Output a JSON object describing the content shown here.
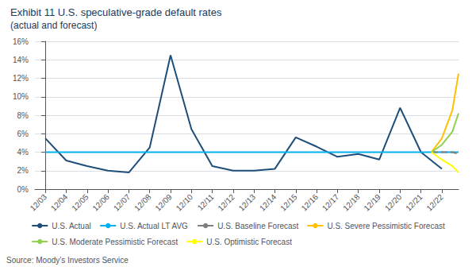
{
  "chart_data": {
    "type": "line",
    "title": "Exhibit 11 U.S. speculative-grade default rates",
    "subtitle": "(actual and forecast)",
    "annotations": [
      "Source: Moody’s Investors Service"
    ],
    "xlim": [
      -0.5,
      19.8
    ],
    "xticks": [
      {
        "value": 0,
        "label": "12/03"
      },
      {
        "value": 1,
        "label": "12/04"
      },
      {
        "value": 2,
        "label": "12/05"
      },
      {
        "value": 3,
        "label": "12/06"
      },
      {
        "value": 4,
        "label": "12/07"
      },
      {
        "value": 5,
        "label": "12/08"
      },
      {
        "value": 6,
        "label": "12/09"
      },
      {
        "value": 7,
        "label": "12/10"
      },
      {
        "value": 8,
        "label": "12/11"
      },
      {
        "value": 9,
        "label": "12/12"
      },
      {
        "value": 10,
        "label": "12/13"
      },
      {
        "value": 11,
        "label": "12/14"
      },
      {
        "value": 12,
        "label": "12/15"
      },
      {
        "value": 13,
        "label": "12/16"
      },
      {
        "value": 14,
        "label": "12/17"
      },
      {
        "value": 15,
        "label": "12/18"
      },
      {
        "value": 16,
        "label": "12/19"
      },
      {
        "value": 17,
        "label": "12/20"
      },
      {
        "value": 18,
        "label": "12/21"
      },
      {
        "value": 19,
        "label": "12/22"
      }
    ],
    "ylim": [
      0,
      0.16
    ],
    "yticks": [
      {
        "value": 0,
        "label": "0%"
      },
      {
        "value": 0.02,
        "label": "2%"
      },
      {
        "value": 0.04,
        "label": "4%"
      },
      {
        "value": 0.06,
        "label": "6%"
      },
      {
        "value": 0.08,
        "label": "8%"
      },
      {
        "value": 0.1,
        "label": "10%"
      },
      {
        "value": 0.12,
        "label": "12%"
      },
      {
        "value": 0.14,
        "label": "14%"
      },
      {
        "value": 0.16,
        "label": "16%"
      }
    ],
    "grid": true,
    "legend": "bottom",
    "series": [
      {
        "name": "U.S. Actual",
        "color": "#1f4e79",
        "line_style": "solid",
        "x": [
          0,
          1,
          2,
          3,
          4,
          5,
          6,
          7,
          8,
          9,
          10,
          11,
          12,
          13,
          14,
          15,
          16,
          17,
          18,
          19
        ],
        "values": [
          0.055,
          0.031,
          0.025,
          0.02,
          0.018,
          0.045,
          0.145,
          0.065,
          0.025,
          0.02,
          0.02,
          0.022,
          0.056,
          0.046,
          0.035,
          0.038,
          0.032,
          0.088,
          0.04,
          0.022
        ]
      },
      {
        "name": "U.S. Actual LT AVG",
        "color": "#00b0f0",
        "line_style": "solid",
        "x": [
          0,
          19.8
        ],
        "values": [
          0.04,
          0.04
        ]
      },
      {
        "name": "U.S. Baseline Forecast",
        "color": "#7f7f7f",
        "line_style": "dashed",
        "x": [
          18.5,
          19,
          19.5,
          19.8
        ],
        "values": [
          0.04,
          0.04,
          0.04,
          0.038
        ]
      },
      {
        "name": "U.S. Severe Pessimistic Forecast",
        "color": "#ffc000",
        "line_style": "solid",
        "x": [
          18.5,
          19,
          19.5,
          19.8
        ],
        "values": [
          0.04,
          0.055,
          0.085,
          0.125
        ]
      },
      {
        "name": "U.S. Moderate Pessimistic Forecast",
        "color": "#92d050",
        "line_style": "solid",
        "x": [
          18.5,
          19,
          19.5,
          19.8
        ],
        "values": [
          0.04,
          0.048,
          0.062,
          0.082
        ]
      },
      {
        "name": "U.S. Optimistic Forecast",
        "color": "#ffff00",
        "line_style": "solid",
        "x": [
          18.5,
          19,
          19.5,
          19.8
        ],
        "values": [
          0.04,
          0.032,
          0.025,
          0.018
        ]
      }
    ]
  }
}
